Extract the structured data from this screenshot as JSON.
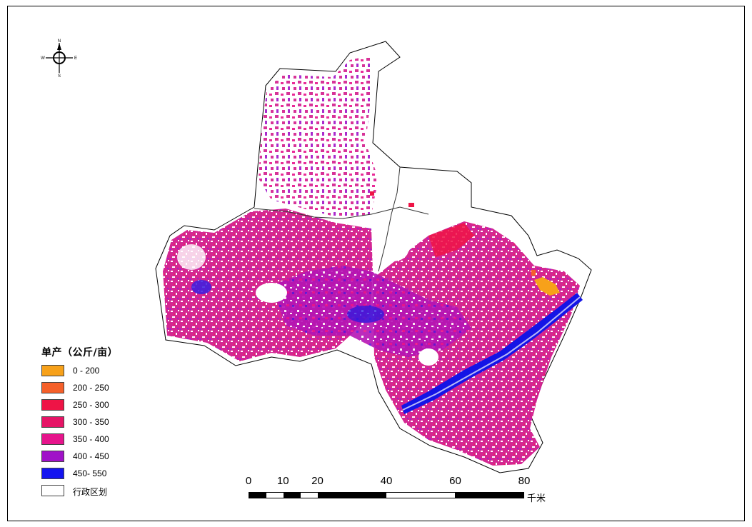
{
  "compass": {
    "north": "N",
    "south": "S",
    "east": "E",
    "west": "W"
  },
  "legend": {
    "title": "单产（公斤/亩）",
    "items": [
      {
        "label": "0 - 200",
        "color": "#f7a11a"
      },
      {
        "label": "200 - 250",
        "color": "#f5602a"
      },
      {
        "label": "250 - 300",
        "color": "#ee1446"
      },
      {
        "label": "300 - 350",
        "color": "#e61466"
      },
      {
        "label": "350 - 400",
        "color": "#e6148c"
      },
      {
        "label": "400 - 450",
        "color": "#a012c8"
      },
      {
        "label": "450- 550",
        "color": "#1414f0"
      },
      {
        "label": "行政区划",
        "color": "#ffffff"
      }
    ]
  },
  "scale_bar": {
    "labels": [
      "0",
      "10",
      "20",
      "40",
      "60",
      "80"
    ],
    "unit": "千米"
  }
}
